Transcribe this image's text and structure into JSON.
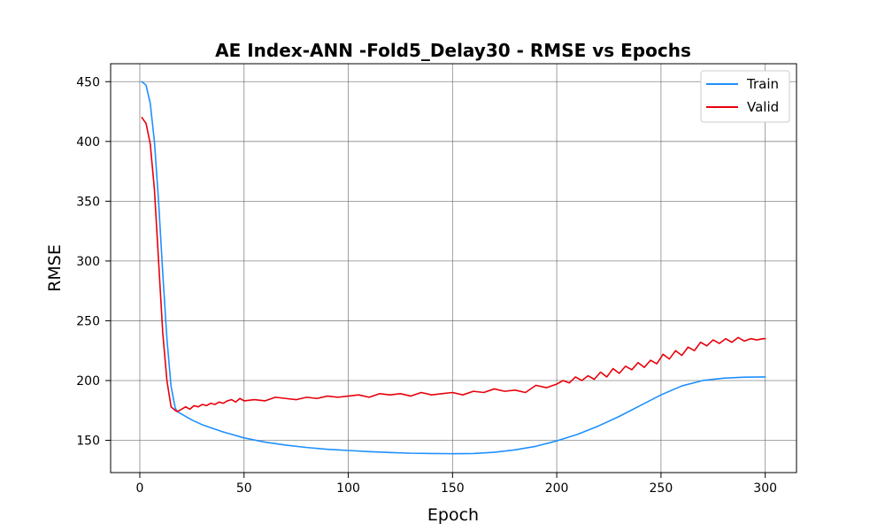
{
  "chart_data": {
    "type": "line",
    "title": "AE Index-ANN -Fold5_Delay30 - RMSE vs Epochs",
    "xlabel": "Epoch",
    "ylabel": "RMSE",
    "xlim": [
      -14,
      315
    ],
    "ylim": [
      123,
      465
    ],
    "xticks": [
      0,
      50,
      100,
      150,
      200,
      250,
      300
    ],
    "yticks": [
      150,
      200,
      250,
      300,
      350,
      400,
      450
    ],
    "grid": true,
    "legend_position": "top-right",
    "series": [
      {
        "name": "Train",
        "color": "#1e90ff",
        "x": [
          1,
          3,
          5,
          7,
          9,
          11,
          13,
          15,
          17,
          18,
          20,
          25,
          30,
          40,
          50,
          60,
          70,
          80,
          90,
          100,
          110,
          120,
          130,
          140,
          150,
          160,
          170,
          180,
          190,
          200,
          210,
          220,
          230,
          240,
          250,
          260,
          270,
          280,
          290,
          300
        ],
        "y": [
          450,
          447,
          432,
          400,
          350,
          290,
          235,
          195,
          177,
          174,
          172,
          167,
          163,
          157,
          152,
          148.5,
          146,
          144,
          142.5,
          141.5,
          140.5,
          139.8,
          139.2,
          139,
          138.8,
          139,
          140,
          142,
          145,
          149.5,
          155,
          162,
          170,
          179,
          188,
          195.5,
          200,
          202,
          202.8,
          203
        ]
      },
      {
        "name": "Valid",
        "color": "#e8000b",
        "x": [
          1,
          3,
          5,
          7,
          9,
          11,
          13,
          15,
          17,
          18,
          20,
          22,
          24,
          26,
          28,
          30,
          32,
          34,
          36,
          38,
          40,
          42,
          44,
          46,
          48,
          50,
          55,
          60,
          65,
          70,
          75,
          80,
          85,
          90,
          95,
          100,
          105,
          110,
          115,
          120,
          125,
          130,
          135,
          140,
          145,
          150,
          155,
          160,
          165,
          170,
          175,
          180,
          185,
          190,
          195,
          200,
          203,
          206,
          209,
          212,
          215,
          218,
          221,
          224,
          227,
          230,
          233,
          236,
          239,
          242,
          245,
          248,
          251,
          254,
          257,
          260,
          263,
          266,
          269,
          272,
          275,
          278,
          281,
          284,
          287,
          290,
          293,
          296,
          299,
          300
        ],
        "y": [
          420,
          415,
          398,
          360,
          300,
          240,
          200,
          178,
          175,
          174,
          176,
          178,
          176,
          179,
          178,
          180,
          179,
          181,
          180,
          182,
          181,
          183,
          184,
          182,
          185,
          183,
          184,
          183,
          186,
          185,
          184,
          186,
          185,
          187,
          186,
          187,
          188,
          186,
          189,
          188,
          189,
          187,
          190,
          188,
          189,
          190,
          188,
          191,
          190,
          193,
          191,
          192,
          190,
          196,
          194,
          197,
          200,
          198,
          203,
          200,
          204,
          201,
          207,
          203,
          210,
          206,
          212,
          209,
          215,
          211,
          217,
          214,
          222,
          218,
          225,
          221,
          228,
          225,
          232,
          229,
          234,
          231,
          235,
          232,
          236,
          233,
          235,
          234,
          235,
          235
        ]
      }
    ]
  }
}
